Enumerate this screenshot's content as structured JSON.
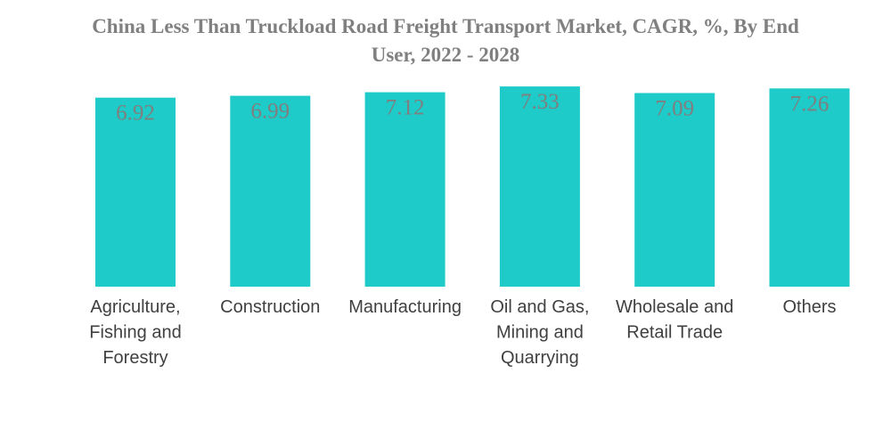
{
  "chart_data": {
    "type": "bar",
    "title": "China Less Than Truckload Road Freight Transport Market, CAGR, %, By End User, 2022 - 2028",
    "title_lines": [
      "China Less Than Truckload Road Freight Transport Market, CAGR, %, By End",
      "User, 2022 - 2028"
    ],
    "categories": [
      [
        "Agriculture,",
        "Fishing and",
        "Forestry"
      ],
      [
        "Construction"
      ],
      [
        "Manufacturing"
      ],
      [
        "Oil and Gas,",
        "Mining and",
        "Quarrying"
      ],
      [
        "Wholesale and",
        "Retail Trade"
      ],
      [
        "Others"
      ]
    ],
    "values": [
      6.92,
      6.99,
      7.12,
      7.33,
      7.09,
      7.26
    ],
    "value_labels": [
      "6.92",
      "6.99",
      "7.12",
      "7.33",
      "7.09",
      "7.26"
    ],
    "xlabel": "",
    "ylabel": "",
    "ylim": [
      0,
      7.4
    ],
    "grid": false,
    "legend": "none",
    "bar_color": "#1ecbc8"
  }
}
